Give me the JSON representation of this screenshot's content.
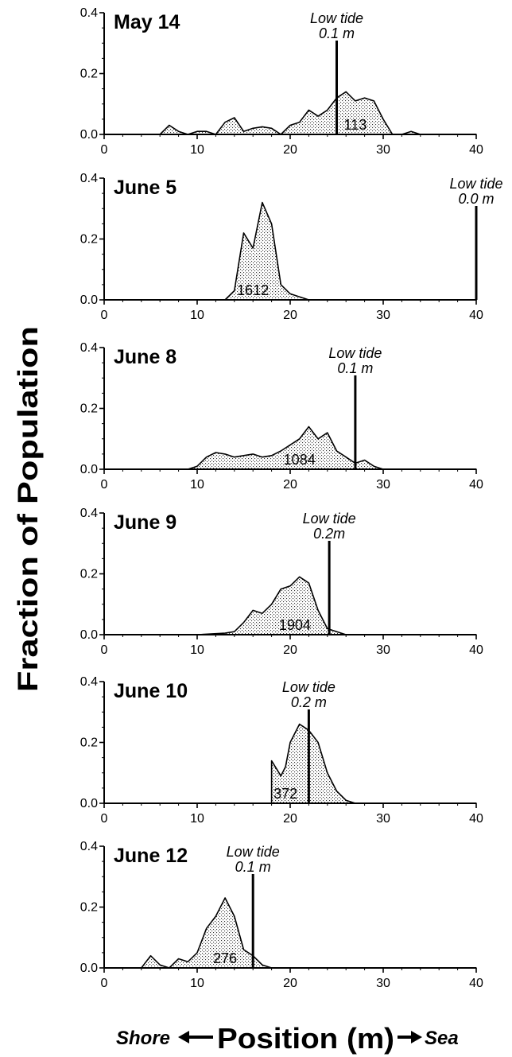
{
  "figure": {
    "ylabel": "Fraction of Population",
    "xlabel": "Position (m)",
    "xlabel_left": "Shore",
    "xlabel_right": "Sea",
    "fill_pattern": "stipple",
    "colors": {
      "ink": "#000000",
      "background": "#ffffff"
    }
  },
  "chart_data": [
    {
      "type": "area",
      "title": "May 14",
      "xlim": [
        0,
        40
      ],
      "ylim": [
        0,
        0.4
      ],
      "xticks": [
        "0",
        "10",
        "20",
        "30",
        "40"
      ],
      "yticks": [
        "0.0",
        "0.2",
        "0.4"
      ],
      "low_tide": {
        "x": 25,
        "label1": "Low tide",
        "label2": "0.1 m"
      },
      "count": {
        "text": "113",
        "x": 27
      },
      "points": [
        [
          0,
          0
        ],
        [
          6,
          0
        ],
        [
          7,
          0.03
        ],
        [
          8,
          0.01
        ],
        [
          9,
          0
        ],
        [
          10,
          0.01
        ],
        [
          11,
          0.01
        ],
        [
          12,
          0
        ],
        [
          13,
          0.04
        ],
        [
          14,
          0.055
        ],
        [
          15,
          0.01
        ],
        [
          16,
          0.02
        ],
        [
          17,
          0.025
        ],
        [
          18,
          0.02
        ],
        [
          19,
          0
        ],
        [
          20,
          0.03
        ],
        [
          21,
          0.04
        ],
        [
          22,
          0.08
        ],
        [
          23,
          0.06
        ],
        [
          24,
          0.08
        ],
        [
          25,
          0.12
        ],
        [
          26,
          0.14
        ],
        [
          27,
          0.11
        ],
        [
          28,
          0.12
        ],
        [
          29,
          0.11
        ],
        [
          30,
          0.05
        ],
        [
          31,
          0
        ],
        [
          32,
          0
        ],
        [
          33,
          0.01
        ],
        [
          34,
          0
        ],
        [
          40,
          0
        ]
      ]
    },
    {
      "type": "area",
      "title": "June 5",
      "xlim": [
        0,
        40
      ],
      "ylim": [
        0,
        0.4
      ],
      "xticks": [
        "0",
        "10",
        "20",
        "30",
        "40"
      ],
      "yticks": [
        "0.0",
        "0.2",
        "0.4"
      ],
      "low_tide": {
        "x": 40,
        "label1": "Low tide",
        "label2": "0.0 m"
      },
      "count": {
        "text": "1612",
        "x": 16
      },
      "points": [
        [
          0,
          0
        ],
        [
          13,
          0
        ],
        [
          14,
          0.03
        ],
        [
          15,
          0.22
        ],
        [
          16,
          0.17
        ],
        [
          17,
          0.32
        ],
        [
          18,
          0.25
        ],
        [
          19,
          0.05
        ],
        [
          20,
          0.02
        ],
        [
          22,
          0
        ],
        [
          40,
          0
        ]
      ]
    },
    {
      "type": "area",
      "title": "June 8",
      "xlim": [
        0,
        40
      ],
      "ylim": [
        0,
        0.4
      ],
      "xticks": [
        "0",
        "10",
        "20",
        "30",
        "40"
      ],
      "yticks": [
        "0.0",
        "0.2",
        "0.4"
      ],
      "low_tide": {
        "x": 27,
        "label1": "Low tide",
        "label2": "0.1 m"
      },
      "count": {
        "text": "1084",
        "x": 21
      },
      "points": [
        [
          0,
          0
        ],
        [
          9,
          0
        ],
        [
          10,
          0.01
        ],
        [
          11,
          0.04
        ],
        [
          12,
          0.055
        ],
        [
          13,
          0.05
        ],
        [
          14,
          0.04
        ],
        [
          15,
          0.045
        ],
        [
          16,
          0.05
        ],
        [
          17,
          0.04
        ],
        [
          18,
          0.045
        ],
        [
          19,
          0.06
        ],
        [
          20,
          0.08
        ],
        [
          21,
          0.1
        ],
        [
          22,
          0.14
        ],
        [
          23,
          0.1
        ],
        [
          24,
          0.12
        ],
        [
          25,
          0.06
        ],
        [
          26,
          0.04
        ],
        [
          27,
          0.02
        ],
        [
          28,
          0.03
        ],
        [
          29,
          0.01
        ],
        [
          30,
          0
        ],
        [
          40,
          0
        ]
      ]
    },
    {
      "type": "area",
      "title": "June 9",
      "xlim": [
        0,
        40
      ],
      "ylim": [
        0,
        0.4
      ],
      "xticks": [
        "0",
        "10",
        "20",
        "30",
        "40"
      ],
      "yticks": [
        "0.0",
        "0.2",
        "0.4"
      ],
      "low_tide": {
        "x": 24.2,
        "label1": "Low tide",
        "label2": "0.2m"
      },
      "count": {
        "text": "1904",
        "x": 20.5
      },
      "points": [
        [
          0,
          0
        ],
        [
          10,
          0
        ],
        [
          13,
          0.005
        ],
        [
          14,
          0.01
        ],
        [
          15,
          0.04
        ],
        [
          16,
          0.08
        ],
        [
          17,
          0.07
        ],
        [
          18,
          0.1
        ],
        [
          19,
          0.15
        ],
        [
          20,
          0.16
        ],
        [
          21,
          0.19
        ],
        [
          22,
          0.17
        ],
        [
          23,
          0.08
        ],
        [
          24,
          0.02
        ],
        [
          25,
          0.01
        ],
        [
          26,
          0
        ],
        [
          40,
          0
        ]
      ]
    },
    {
      "type": "area",
      "title": "June 10",
      "xlim": [
        0,
        40
      ],
      "ylim": [
        0,
        0.4
      ],
      "xticks": [
        "0",
        "10",
        "20",
        "30",
        "40"
      ],
      "yticks": [
        "0.0",
        "0.2",
        "0.4"
      ],
      "low_tide": {
        "x": 22,
        "label1": "Low tide",
        "label2": "0.2 m"
      },
      "count": {
        "text": "372",
        "x": 19.5
      },
      "points": [
        [
          0,
          0
        ],
        [
          18,
          0
        ],
        [
          18,
          0.14
        ],
        [
          19,
          0.09
        ],
        [
          19.5,
          0.12
        ],
        [
          20,
          0.2
        ],
        [
          21,
          0.26
        ],
        [
          22,
          0.24
        ],
        [
          23,
          0.2
        ],
        [
          24,
          0.1
        ],
        [
          25,
          0.04
        ],
        [
          26,
          0.01
        ],
        [
          27,
          0
        ],
        [
          40,
          0
        ]
      ]
    },
    {
      "type": "area",
      "title": "June 12",
      "xlim": [
        0,
        40
      ],
      "ylim": [
        0,
        0.4
      ],
      "xticks": [
        "0",
        "10",
        "20",
        "30",
        "40"
      ],
      "yticks": [
        "0.0",
        "0.2",
        "0.4"
      ],
      "low_tide": {
        "x": 16,
        "label1": "Low tide",
        "label2": "0.1 m"
      },
      "count": {
        "text": "276",
        "x": 13
      },
      "points": [
        [
          0,
          0
        ],
        [
          4,
          0
        ],
        [
          5,
          0.04
        ],
        [
          6,
          0.01
        ],
        [
          7,
          0
        ],
        [
          8,
          0.03
        ],
        [
          9,
          0.02
        ],
        [
          10,
          0.05
        ],
        [
          11,
          0.13
        ],
        [
          12,
          0.17
        ],
        [
          13,
          0.23
        ],
        [
          14,
          0.17
        ],
        [
          15,
          0.06
        ],
        [
          16,
          0.04
        ],
        [
          17,
          0.01
        ],
        [
          18,
          0
        ],
        [
          40,
          0
        ]
      ]
    }
  ]
}
